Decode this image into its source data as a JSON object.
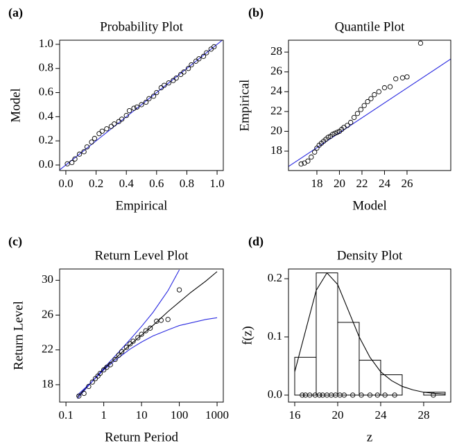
{
  "chart_data": [
    {
      "type": "scatter",
      "label": "(a)",
      "title": "Probability Plot",
      "xlabel": "Empirical",
      "ylabel": "Model",
      "xlim": [
        -0.041,
        1.041
      ],
      "ylim": [
        -0.046,
        1.034
      ],
      "xticks": [
        {
          "value": 0,
          "label": "0.0"
        },
        0.2,
        0.4,
        0.6,
        0.8,
        {
          "value": 1,
          "label": "1.0"
        }
      ],
      "yticks": [
        {
          "value": 0,
          "label": "0.0"
        },
        0.2,
        0.4,
        0.6,
        0.8,
        {
          "value": 1,
          "label": "1.0"
        }
      ],
      "series": [
        {
          "mode": "lines",
          "color": "#2a2ae0",
          "x": [
            -0.041,
            1.041
          ],
          "y": [
            -0.041,
            1.041
          ]
        },
        {
          "mode": "markers",
          "color": "#000000",
          "x": [
            0.01,
            0.04,
            0.06,
            0.09,
            0.12,
            0.14,
            0.17,
            0.19,
            0.22,
            0.24,
            0.27,
            0.3,
            0.32,
            0.35,
            0.37,
            0.4,
            0.42,
            0.45,
            0.47,
            0.5,
            0.53,
            0.55,
            0.58,
            0.6,
            0.63,
            0.65,
            0.68,
            0.71,
            0.73,
            0.76,
            0.78,
            0.81,
            0.83,
            0.86,
            0.88,
            0.91,
            0.93,
            0.96,
            0.98
          ],
          "y": [
            0.01,
            0.02,
            0.05,
            0.09,
            0.11,
            0.15,
            0.19,
            0.22,
            0.26,
            0.28,
            0.3,
            0.32,
            0.34,
            0.36,
            0.38,
            0.41,
            0.45,
            0.47,
            0.48,
            0.5,
            0.52,
            0.55,
            0.57,
            0.6,
            0.64,
            0.66,
            0.68,
            0.7,
            0.72,
            0.75,
            0.77,
            0.8,
            0.83,
            0.86,
            0.88,
            0.9,
            0.93,
            0.96,
            0.98
          ]
        }
      ]
    },
    {
      "type": "scatter",
      "label": "(b)",
      "title": "Quantile Plot",
      "xlabel": "Model",
      "ylabel": "Empirical",
      "xlim": [
        15.48,
        29.88
      ],
      "ylim": [
        16.04,
        29.2
      ],
      "xticks": [
        18,
        20,
        22,
        24,
        26
      ],
      "yticks": [
        18,
        20,
        22,
        24,
        26,
        28
      ],
      "series": [
        {
          "mode": "lines",
          "color": "#2a2ae0",
          "x": [
            15.48,
            29.88
          ],
          "y": [
            16.45,
            27.3
          ]
        },
        {
          "mode": "markers",
          "color": "#000000",
          "x": [
            16.6,
            16.9,
            17.2,
            17.5,
            17.8,
            18.0,
            18.2,
            18.4,
            18.6,
            18.8,
            19.0,
            19.2,
            19.4,
            19.6,
            19.8,
            20.0,
            20.2,
            20.4,
            20.7,
            21.0,
            21.3,
            21.6,
            21.9,
            22.2,
            22.5,
            22.8,
            23.1,
            23.5,
            24.0,
            24.5,
            25.0,
            25.6,
            26.0,
            27.2
          ],
          "y": [
            16.7,
            16.8,
            17.0,
            17.4,
            17.9,
            18.3,
            18.6,
            18.8,
            19.0,
            19.2,
            19.4,
            19.5,
            19.7,
            19.8,
            19.9,
            20.0,
            20.2,
            20.4,
            20.6,
            20.9,
            21.4,
            21.8,
            22.2,
            22.6,
            23.0,
            23.3,
            23.7,
            24.0,
            24.4,
            24.5,
            25.3,
            25.4,
            25.5,
            28.9
          ]
        }
      ]
    },
    {
      "type": "scatter",
      "label": "(c)",
      "title": "Return Level Plot",
      "xlabel": "Return Period",
      "ylabel": "Return Level",
      "xscale": "log",
      "xlim": [
        0.068,
        1460
      ],
      "ylim": [
        16,
        31.3
      ],
      "xticks": [
        0.1,
        1,
        10,
        100,
        1000
      ],
      "yticks": [
        18,
        22,
        26,
        30
      ],
      "series": [
        {
          "mode": "lines",
          "color": "#000000",
          "x": [
            0.2,
            0.5,
            1,
            2,
            5,
            10,
            20,
            50,
            100,
            200,
            500,
            1000
          ],
          "y": [
            16.6,
            18.4,
            19.8,
            21.0,
            22.6,
            23.7,
            24.8,
            26.4,
            27.5,
            28.6,
            29.9,
            31.0
          ]
        },
        {
          "mode": "lines",
          "color": "#2a2ae0",
          "x": [
            0.2,
            0.5,
            1,
            2,
            5,
            10,
            20,
            50,
            100
          ],
          "y": [
            16.4,
            18.4,
            19.9,
            21.3,
            23.2,
            24.7,
            26.3,
            28.8,
            31.2
          ]
        },
        {
          "mode": "lines",
          "color": "#2a2ae0",
          "x": [
            0.2,
            0.5,
            1,
            2,
            5,
            10,
            20,
            50,
            100,
            200,
            500,
            1000
          ],
          "y": [
            16.8,
            18.4,
            19.7,
            20.8,
            22.1,
            22.9,
            23.6,
            24.3,
            24.8,
            25.1,
            25.5,
            25.7
          ]
        },
        {
          "mode": "markers",
          "color": "#000000",
          "x": [
            0.22,
            0.3,
            0.4,
            0.5,
            0.6,
            0.7,
            0.8,
            1,
            1.2,
            1.5,
            2,
            2.5,
            3,
            4,
            5,
            6,
            8,
            10,
            13,
            17,
            25,
            33,
            50,
            100
          ],
          "y": [
            16.7,
            17.0,
            17.8,
            18.3,
            18.7,
            19.0,
            19.3,
            19.7,
            20.0,
            20.3,
            20.9,
            21.4,
            21.8,
            22.3,
            22.7,
            23.0,
            23.4,
            23.8,
            24.2,
            24.5,
            25.3,
            25.4,
            25.5,
            28.9
          ]
        }
      ]
    },
    {
      "type": "histogram",
      "label": "(d)",
      "title": "Density Plot",
      "xlabel": "z",
      "ylabel": "f(z)",
      "xlim": [
        15.42,
        30.52
      ],
      "ylim": [
        -0.012,
        0.2167
      ],
      "xticks": [
        16,
        20,
        24,
        28
      ],
      "yticks": [
        {
          "value": 0,
          "label": "0.0"
        },
        0.1,
        0.2
      ],
      "bins": [
        16,
        18,
        20,
        22,
        24,
        26,
        28,
        30
      ],
      "counts": [
        0.065,
        0.21,
        0.125,
        0.06,
        0.035,
        0,
        0.005
      ],
      "series": [
        {
          "mode": "lines",
          "color": "#000000",
          "x": [
            16,
            17,
            18,
            19,
            20,
            21,
            22,
            23,
            24,
            25,
            26,
            27,
            28,
            29,
            30
          ],
          "y": [
            0.04,
            0.11,
            0.18,
            0.21,
            0.19,
            0.145,
            0.1,
            0.065,
            0.04,
            0.025,
            0.015,
            0.009,
            0.005,
            0.003,
            0.002
          ]
        },
        {
          "mode": "markers",
          "color": "#000000",
          "x": [
            16.7,
            17.0,
            17.4,
            17.9,
            18.3,
            18.6,
            19.0,
            19.4,
            19.8,
            20.2,
            20.6,
            21.4,
            22.2,
            23.0,
            23.7,
            24.4,
            25.3,
            28.9
          ],
          "y": [
            0,
            0,
            0,
            0,
            0,
            0,
            0,
            0,
            0,
            0,
            0,
            0,
            0,
            0,
            0,
            0,
            0,
            0
          ]
        }
      ]
    }
  ]
}
